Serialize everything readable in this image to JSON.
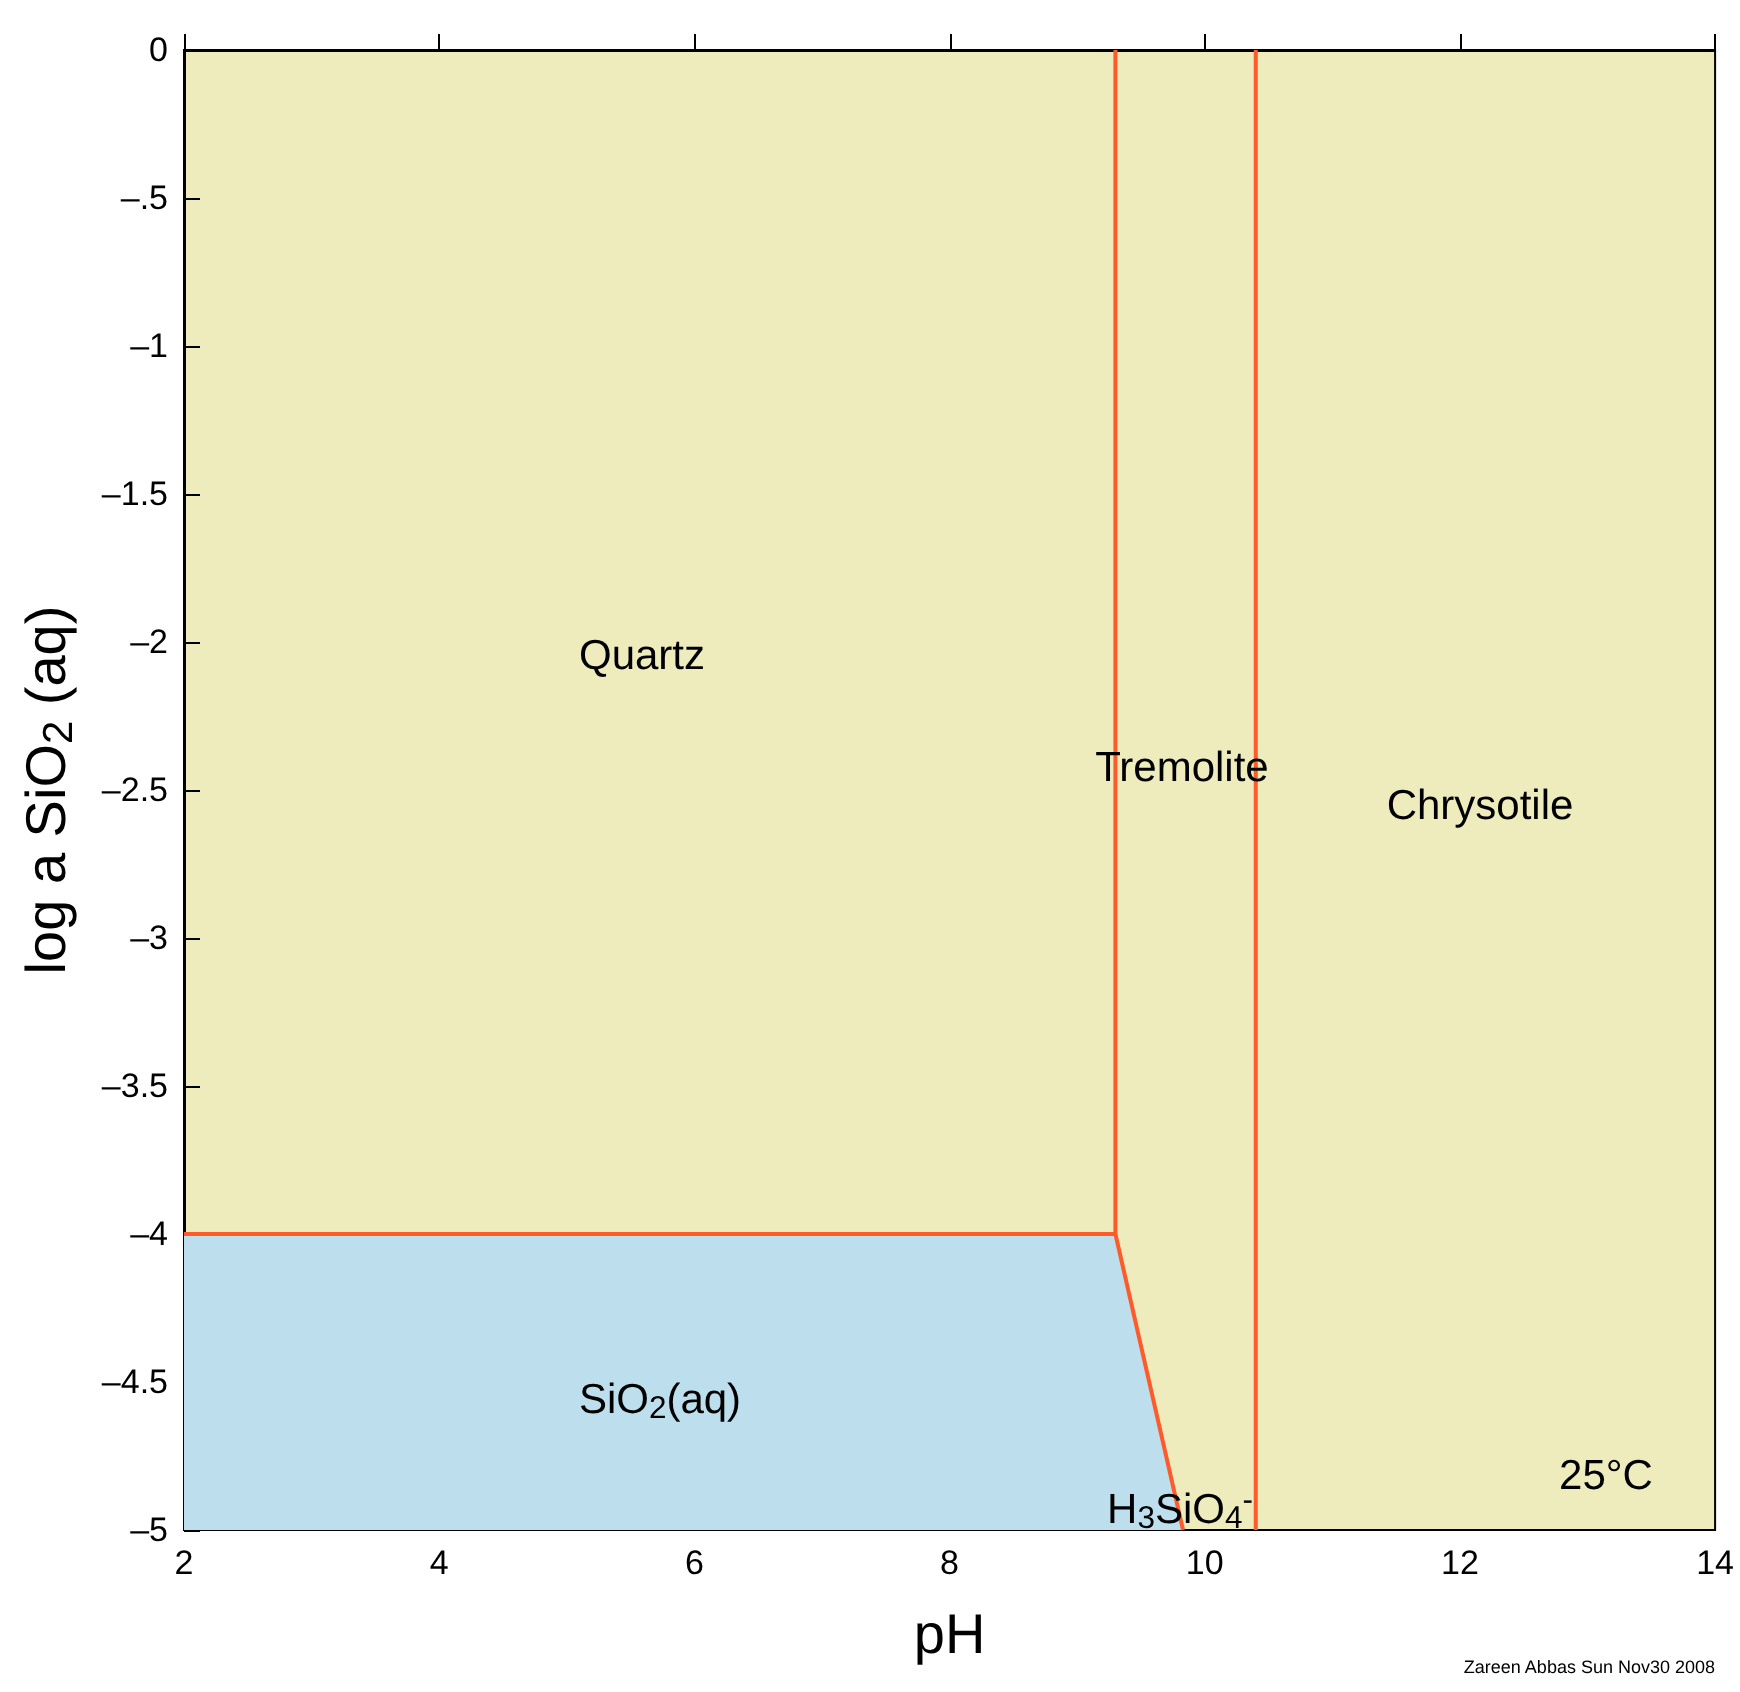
{
  "chart_data": {
    "type": "line",
    "xlabel": "pH",
    "ylabel": "log a SiO$_{2}$ (aq)",
    "xlim": [
      2,
      14
    ],
    "xticks": [
      2,
      4,
      6,
      8,
      10,
      12,
      14
    ],
    "ylim": [
      -5,
      0
    ],
    "yticks": [
      0,
      {
        "value": -0.5,
        "label": "–.5"
      },
      {
        "value": -1,
        "label": "–1"
      },
      {
        "value": -1.5,
        "label": "–1.5"
      },
      {
        "value": -2,
        "label": "–2"
      },
      {
        "value": -2.5,
        "label": "–2.5"
      },
      {
        "value": -3,
        "label": "–3"
      },
      {
        "value": -3.5,
        "label": "–3.5"
      },
      {
        "value": -4,
        "label": "–4"
      },
      {
        "value": -4.5,
        "label": "–4.5"
      },
      {
        "value": -5,
        "label": "–5"
      }
    ],
    "grid": false,
    "marker": "none",
    "line_style": "solid",
    "series": [
      {
        "type": "area",
        "color": "#bcdeed",
        "x": [
          2,
          2,
          9.3,
          9.83
        ],
        "values": [
          -5,
          -4,
          -4,
          -5
        ]
      },
      {
        "color": "#ff5a2a",
        "x": [
          2,
          9.3
        ],
        "values": [
          -4,
          -4
        ]
      },
      {
        "color": "#ff5a2a",
        "x": [
          9.3,
          9.3,
          9.83
        ],
        "values": [
          0,
          -4,
          -5
        ]
      },
      {
        "color": "#ff5a2a",
        "x": [
          10.4,
          10.4
        ],
        "values": [
          -5,
          0
        ]
      }
    ],
    "annotations": [
      "Quartz",
      "SiO$_{2}$(aq)",
      "Tremolite",
      "Chrysotile",
      "H$_{3}$SiO$_{4}$$^{-}$",
      "25°C",
      "Zareen Abbas Sun Nov30 2008"
    ]
  }
}
